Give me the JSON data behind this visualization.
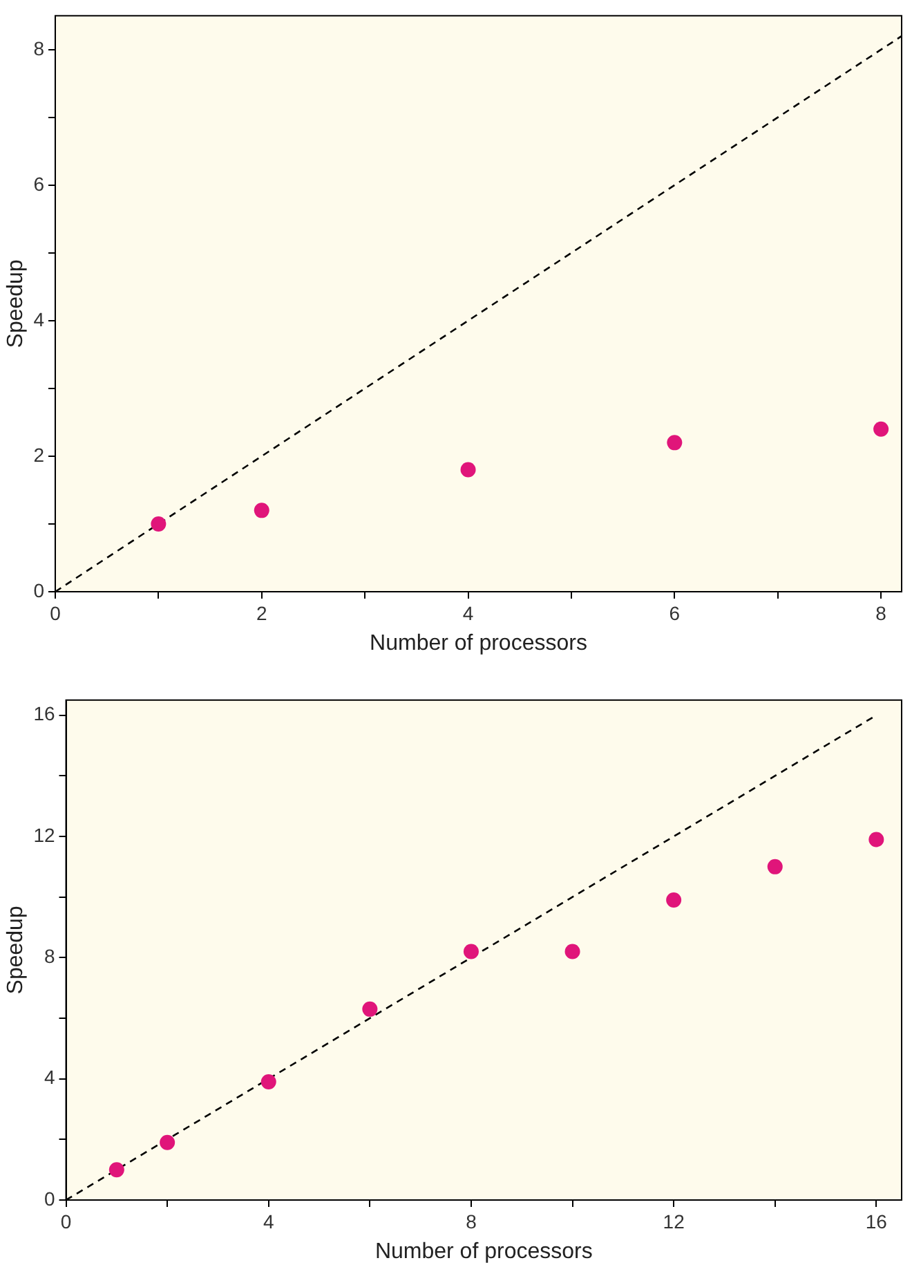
{
  "chart_data": [
    {
      "type": "scatter",
      "xlabel": "Number of processors",
      "ylabel": "Speedup",
      "xlim": [
        0,
        8.2
      ],
      "ylim": [
        0,
        8.5
      ],
      "xticks": [
        0,
        {
          "value": 1,
          "label": null
        },
        2,
        {
          "value": 3,
          "label": null
        },
        4,
        {
          "value": 5,
          "label": null
        },
        6,
        {
          "value": 7,
          "label": null
        },
        8
      ],
      "yticks": [
        0,
        {
          "value": 1,
          "label": null
        },
        2,
        {
          "value": 3,
          "label": null
        },
        4,
        {
          "value": 5,
          "label": null
        },
        6,
        {
          "value": 7,
          "label": null
        },
        8
      ],
      "grid": false,
      "legend": false,
      "marker": "circle",
      "series": [
        {
          "type": "scatter",
          "color": "#e0157a",
          "x": [
            1,
            2,
            4,
            6,
            8
          ],
          "values": [
            1.0,
            1.2,
            1.8,
            2.2,
            2.4
          ]
        },
        {
          "type": "line",
          "color": "#000000",
          "x": [
            0,
            8.2
          ],
          "values": [
            0,
            8.2
          ],
          "line_style": "dashed",
          "marker": "none"
        }
      ]
    },
    {
      "type": "scatter",
      "xlabel": "Number of processors",
      "ylabel": "Speedup",
      "xlim": [
        0,
        16.5
      ],
      "ylim": [
        0,
        16.5
      ],
      "xticks": [
        0,
        {
          "value": 2,
          "label": null
        },
        4,
        {
          "value": 6,
          "label": null
        },
        8,
        {
          "value": 10,
          "label": null
        },
        12,
        {
          "value": 14,
          "label": null
        },
        16
      ],
      "yticks": [
        0,
        {
          "value": 2,
          "label": null
        },
        4,
        {
          "value": 6,
          "label": null
        },
        8,
        {
          "value": 10,
          "label": null
        },
        12,
        {
          "value": 14,
          "label": null
        },
        16
      ],
      "grid": false,
      "legend": false,
      "marker": "circle",
      "series": [
        {
          "type": "scatter",
          "color": "#e0157a",
          "x": [
            1,
            2,
            4,
            6,
            8,
            10,
            12,
            14,
            16
          ],
          "values": [
            1.0,
            1.9,
            3.9,
            6.3,
            8.2,
            8.2,
            9.9,
            11.0,
            11.9
          ]
        },
        {
          "type": "line",
          "color": "#000000",
          "x": [
            0,
            16
          ],
          "values": [
            0,
            16
          ],
          "line_style": "dashed",
          "marker": "none"
        }
      ]
    }
  ]
}
